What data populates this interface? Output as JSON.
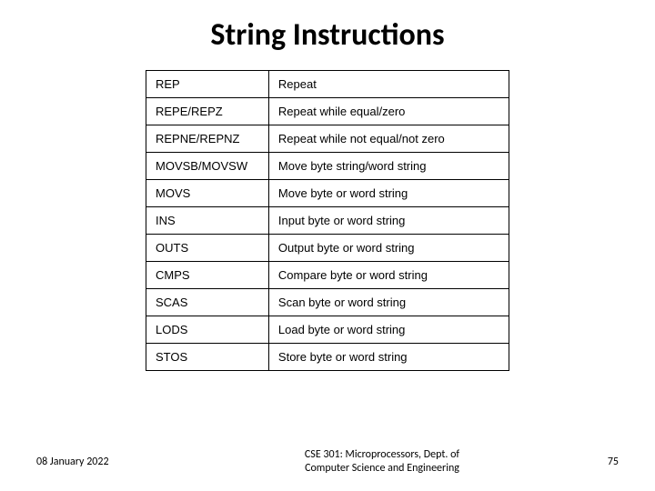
{
  "title": "String Instructions",
  "rows": [
    {
      "mnemonic": "REP",
      "desc": "Repeat"
    },
    {
      "mnemonic": "REPE/REPZ",
      "desc": "Repeat while equal/zero"
    },
    {
      "mnemonic": "REPNE/REPNZ",
      "desc": "Repeat while not equal/not zero"
    },
    {
      "mnemonic": "MOVSB/MOVSW",
      "desc": "Move byte string/word string"
    },
    {
      "mnemonic": "MOVS",
      "desc": "Move byte or word string"
    },
    {
      "mnemonic": "INS",
      "desc": "Input byte or word string"
    },
    {
      "mnemonic": "OUTS",
      "desc": "Output byte or word string"
    },
    {
      "mnemonic": "CMPS",
      "desc": "Compare byte or word string"
    },
    {
      "mnemonic": "SCAS",
      "desc": "Scan byte or word string"
    },
    {
      "mnemonic": "LODS",
      "desc": "Load byte or word string"
    },
    {
      "mnemonic": "STOS",
      "desc": "Store byte or word string"
    }
  ],
  "footer": {
    "date": "08 January 2022",
    "center_line1": "CSE 301: Microprocessors, Dept. of",
    "center_line2": "Computer Science and Engineering",
    "page": "75"
  }
}
